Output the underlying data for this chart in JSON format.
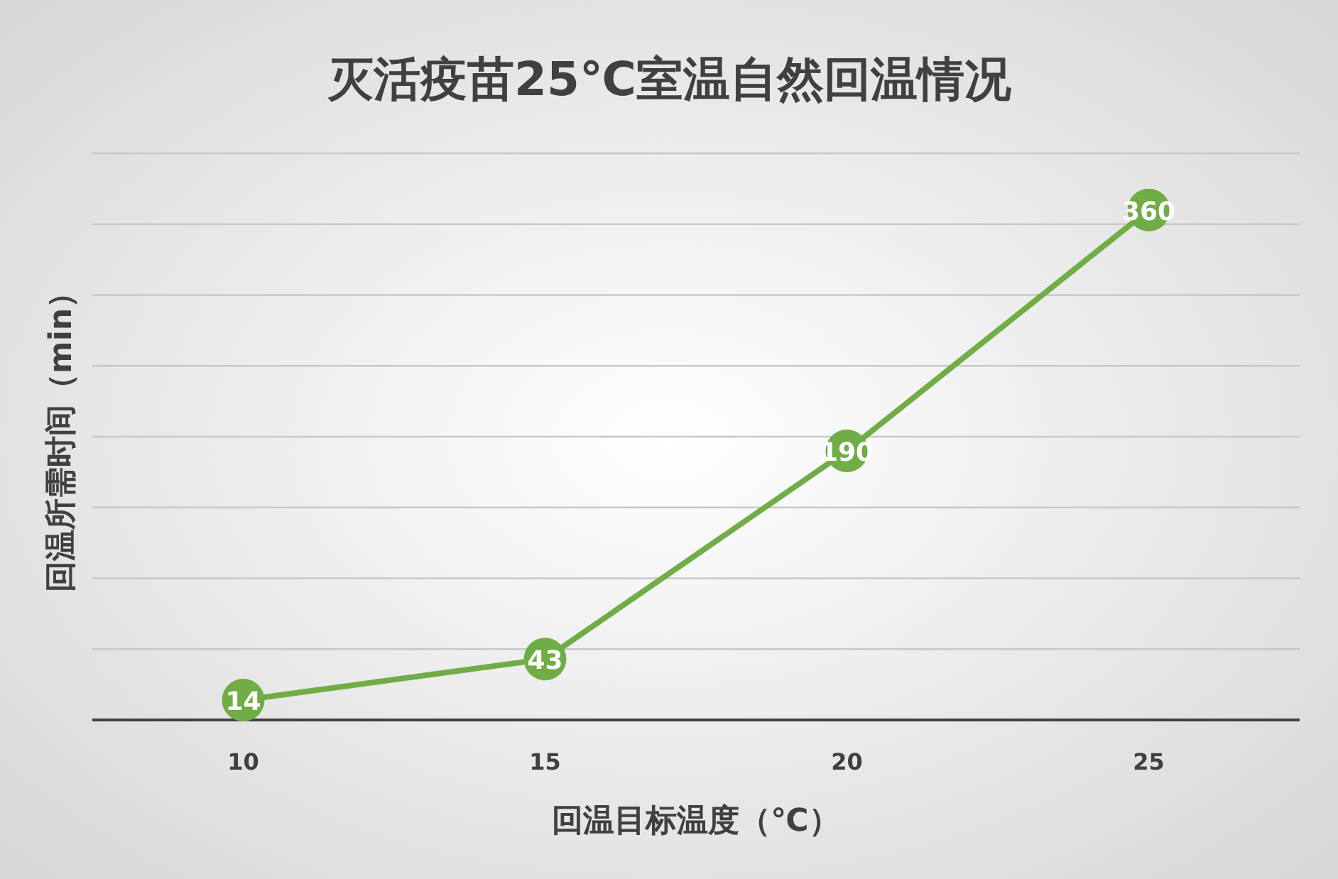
{
  "chart_data": {
    "type": "line",
    "title": "灭活疫苗25℃室温自然回温情况",
    "xlabel": "回温目标温度（℃）",
    "ylabel": "回温所需时间（min）",
    "categories": [
      "10",
      "15",
      "20",
      "25"
    ],
    "series": [
      {
        "color": "#70ad47",
        "values": [
          14,
          43,
          190,
          360
        ]
      }
    ],
    "ylim": [
      0,
      400
    ],
    "yticks": [
      {
        "value": 0,
        "label": null
      },
      {
        "value": 50,
        "label": null
      },
      {
        "value": 100,
        "label": null
      },
      {
        "value": 150,
        "label": null
      },
      {
        "value": 200,
        "label": null
      },
      {
        "value": 250,
        "label": null
      },
      {
        "value": 300,
        "label": null
      },
      {
        "value": 350,
        "label": null
      },
      {
        "value": 400,
        "label": null
      }
    ],
    "grid": "y",
    "tick_labels": "x",
    "data_labels": true,
    "marker": "circle",
    "line_style": "solid"
  }
}
